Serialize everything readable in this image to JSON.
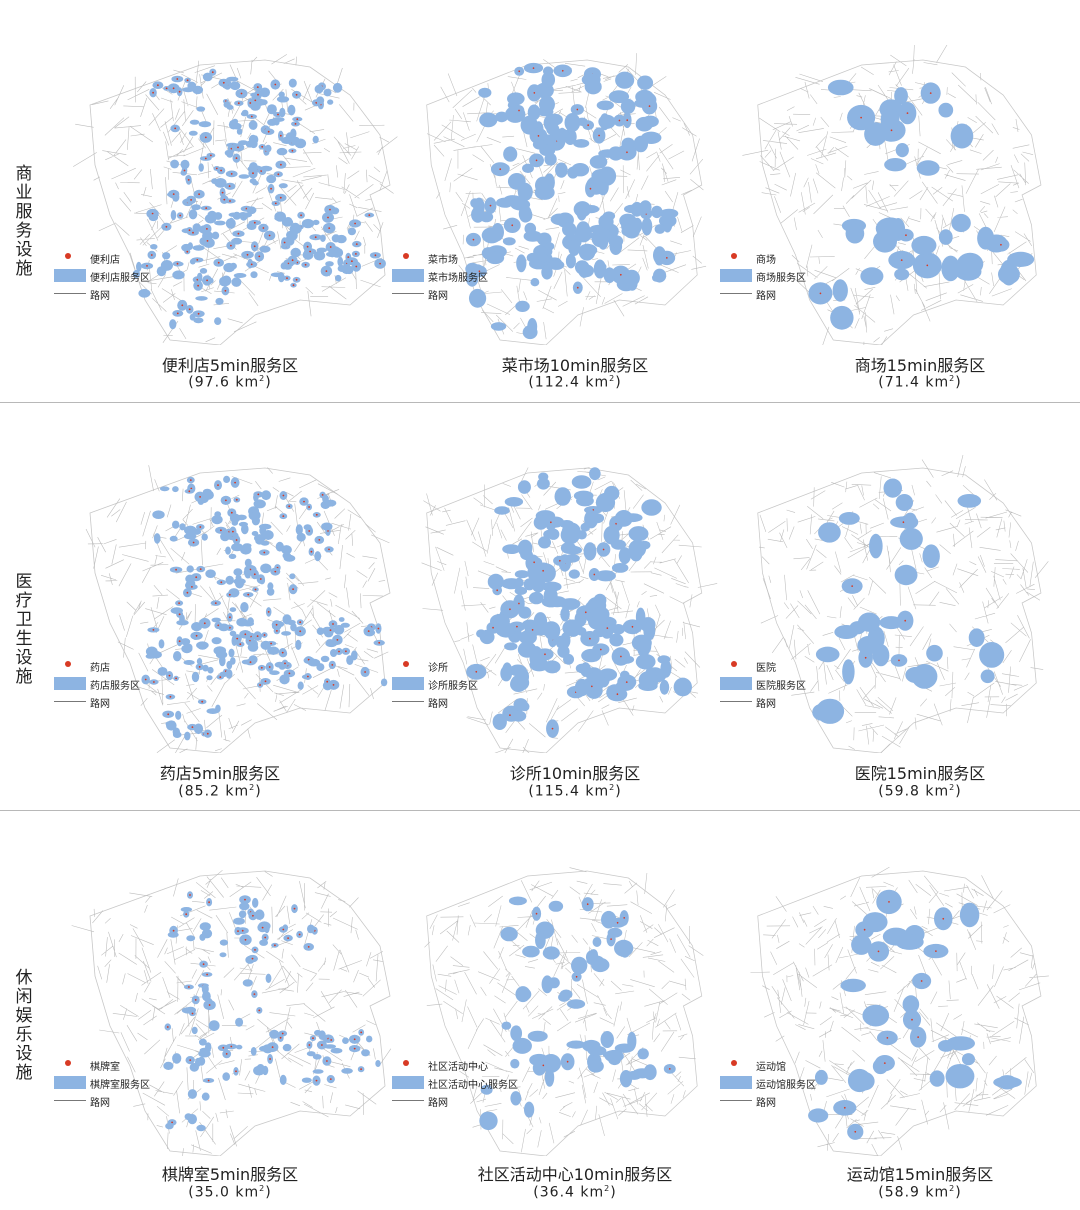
{
  "colors": {
    "service_area": "#8db4e2",
    "facility_point": "#d83a24",
    "road": "#bdbdbd",
    "separator": "#b8b8b8"
  },
  "legend_common": {
    "road": "路网"
  },
  "rows": [
    {
      "label": "商业服务设施",
      "panels": [
        {
          "point": "便利店",
          "area": "便利店服务区",
          "title": "便利店5min服务区",
          "km": "(97.6 km",
          "close": ")",
          "coverage": 0.62
        },
        {
          "point": "菜市场",
          "area": "菜市场服务区",
          "title": "菜市场10min服务区",
          "km": "(112.4 km",
          "close": ")",
          "coverage": 0.72
        },
        {
          "point": "商场",
          "area": "商场服务区",
          "title": "商场15min服务区",
          "km": "(71.4 km",
          "close": ")",
          "coverage": 0.45
        }
      ]
    },
    {
      "label": "医疗卫生设施",
      "panels": [
        {
          "point": "药店",
          "area": "药店服务区",
          "title": "药店5min服务区",
          "km": "(85.2 km",
          "close": ")",
          "coverage": 0.55
        },
        {
          "point": "诊所",
          "area": "诊所服务区",
          "title": "诊所10min服务区",
          "km": "(115.4 km",
          "close": ")",
          "coverage": 0.74
        },
        {
          "point": "医院",
          "area": "医院服务区",
          "title": "医院15min服务区",
          "km": "(59.8 km",
          "close": ")",
          "coverage": 0.38
        }
      ]
    },
    {
      "label": "休闲娱乐设施",
      "panels": [
        {
          "point": "棋牌室",
          "area": "棋牌室服务区",
          "title": "棋牌室5min服务区",
          "km": "(35.0 km",
          "close": ")",
          "coverage": 0.24
        },
        {
          "point": "社区活动中心",
          "area": "社区活动中心服务区",
          "title": "社区活动中心10min服务区",
          "km": "(36.4 km",
          "close": ")",
          "coverage": 0.25
        },
        {
          "point": "运动馆",
          "area": "运动馆服务区",
          "title": "运动馆15min服务区",
          "km": "(58.9 km",
          "close": ")",
          "coverage": 0.38
        }
      ]
    }
  ],
  "unit_sup": "2"
}
